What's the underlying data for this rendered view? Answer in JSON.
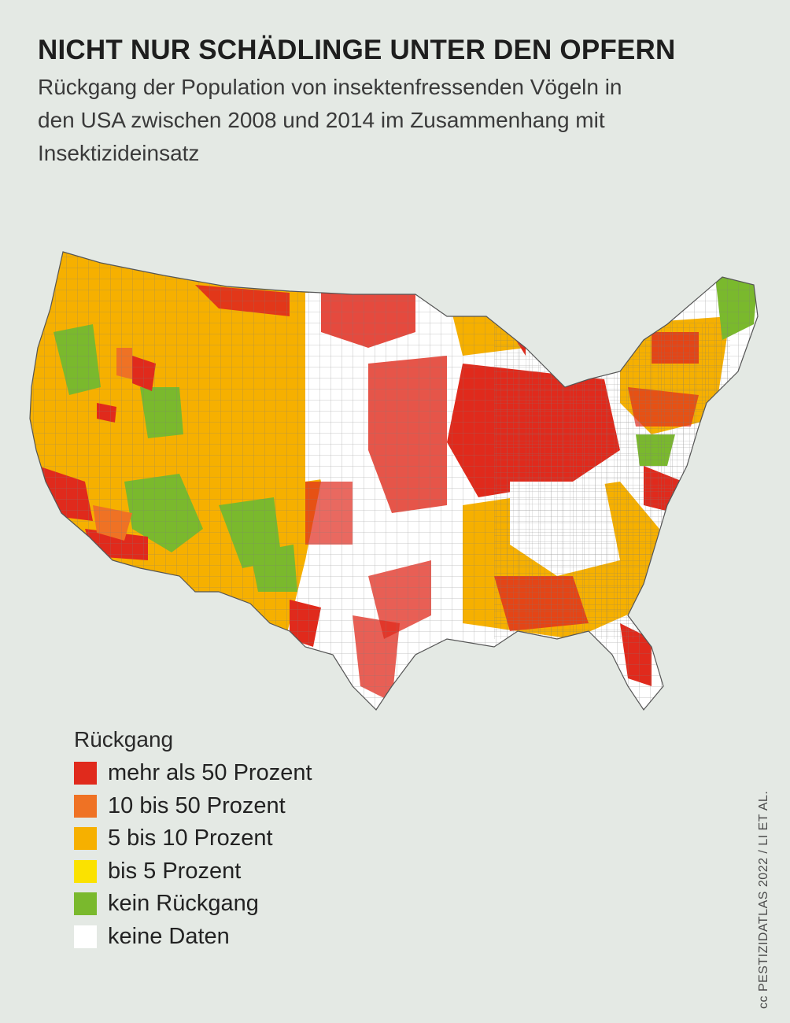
{
  "header": {
    "title": "NICHT NUR SCHÄDLINGE UNTER DEN OPFERN",
    "subtitle": "Rückgang der Population von insektenfressenden Vögeln in den USA zwischen 2008 und 2014 im Zusammenhang mit Insektizideinsatz"
  },
  "legend": {
    "title": "Rückgang",
    "items": [
      {
        "label": "mehr als 50 Prozent",
        "color": "#e02a1c"
      },
      {
        "label": "10 bis 50 Prozent",
        "color": "#ef7224"
      },
      {
        "label": "5 bis 10 Prozent",
        "color": "#f6b000"
      },
      {
        "label": "bis 5 Prozent",
        "color": "#fbe200"
      },
      {
        "label": "kein Rückgang",
        "color": "#7ab92d"
      },
      {
        "label": "keine Daten",
        "color": "#ffffff"
      }
    ]
  },
  "credit": "cc PESTIZIDATLAS 2022 / LI ET AL."
}
